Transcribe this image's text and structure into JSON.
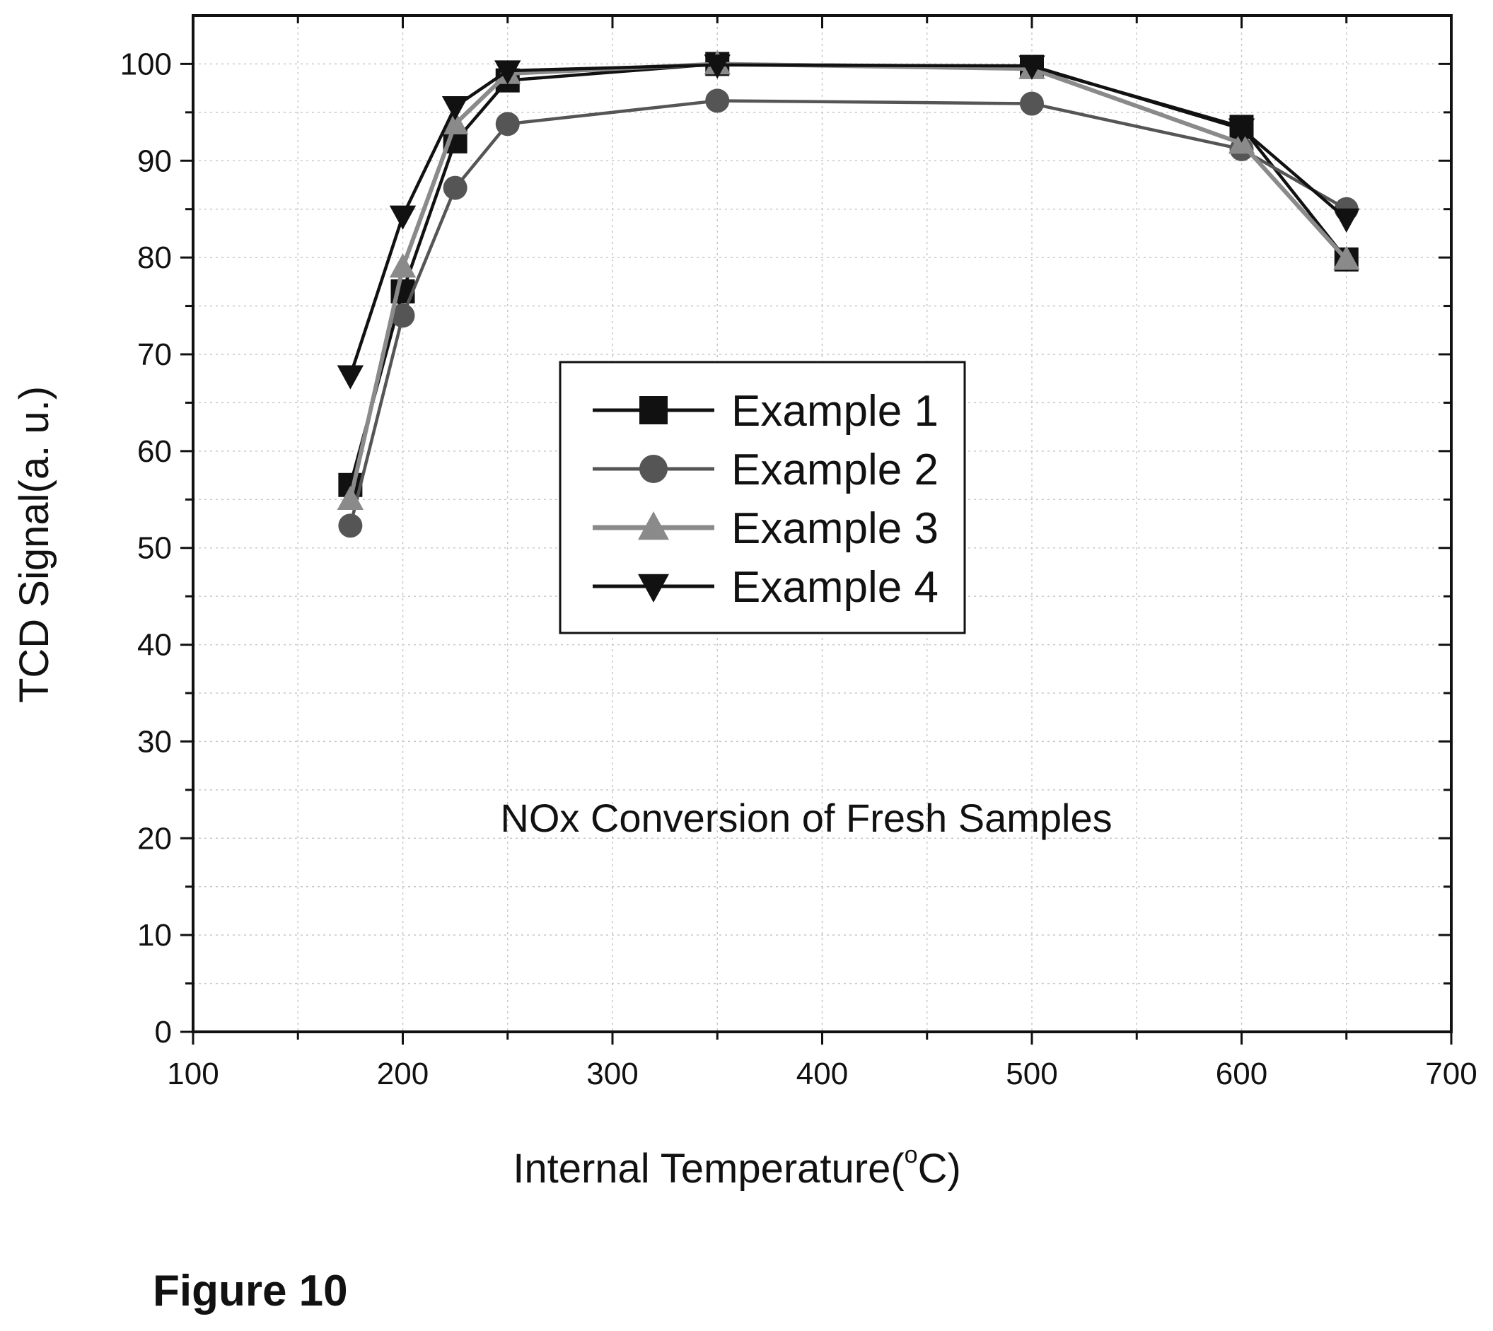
{
  "figure_caption": "Figure 10",
  "chart_data": {
    "type": "line",
    "title": "",
    "annotation": "NOx Conversion of Fresh Samples",
    "xlabel": "Internal Temperature(°C)",
    "xlabel_main": "Internal Temperature(",
    "xlabel_degree": "o",
    "xlabel_unit": "C)",
    "ylabel": "TCD Signal(a. u.)",
    "xlim": [
      100,
      700
    ],
    "ylim": [
      0,
      105
    ],
    "x_ticks": [
      "100",
      "200",
      "300",
      "400",
      "500",
      "600",
      "700"
    ],
    "y_ticks": [
      "0",
      "10",
      "20",
      "30",
      "40",
      "50",
      "60",
      "70",
      "80",
      "90",
      "100"
    ],
    "grid": true,
    "legend_position": "center-left",
    "x": [
      175,
      200,
      225,
      250,
      350,
      500,
      600,
      650
    ],
    "series": [
      {
        "name": "Example 1",
        "marker": "square",
        "color": "#111111",
        "values": [
          56.5,
          76.5,
          92.0,
          98.3,
          100.0,
          99.7,
          93.5,
          79.8
        ]
      },
      {
        "name": "Example 2",
        "marker": "circle",
        "color": "#555555",
        "values": [
          52.3,
          74.0,
          87.2,
          93.8,
          96.2,
          95.9,
          91.2,
          85.0
        ]
      },
      {
        "name": "Example 3",
        "marker": "triangle-up",
        "color": "#8a8a8a",
        "values": [
          55.0,
          79.0,
          93.8,
          99.0,
          100.0,
          99.5,
          91.8,
          79.8
        ]
      },
      {
        "name": "Example 4",
        "marker": "triangle-down",
        "color": "#111111",
        "values": [
          67.8,
          84.3,
          95.6,
          99.3,
          99.9,
          99.8,
          93.3,
          84.0
        ]
      }
    ]
  }
}
